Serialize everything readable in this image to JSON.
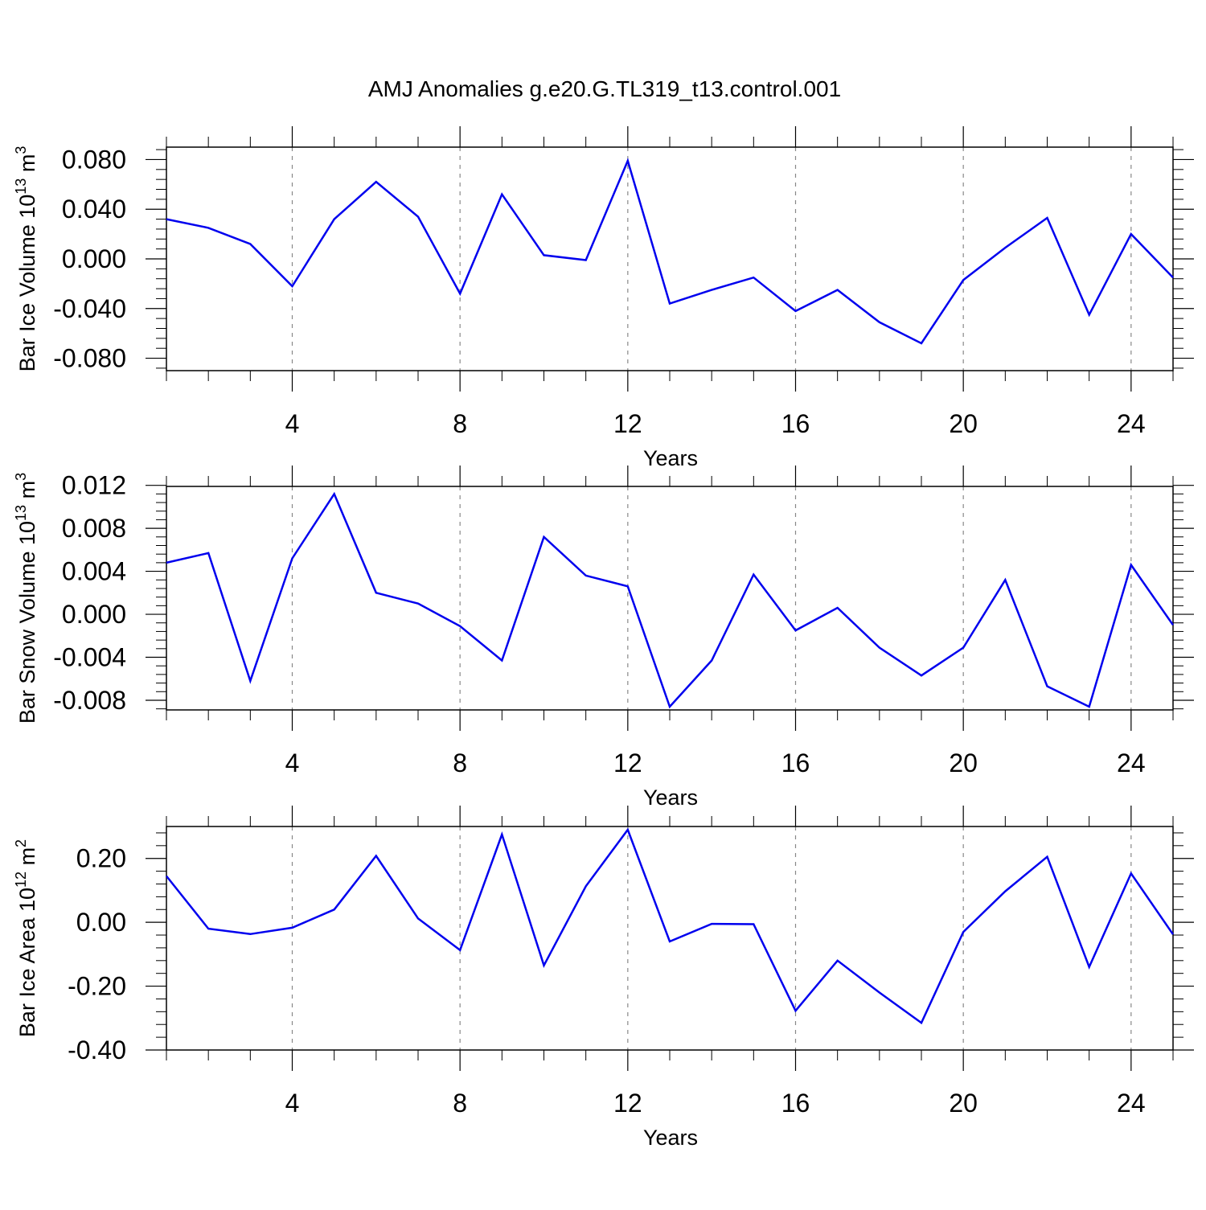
{
  "title": "AMJ Anomalies g.e20.G.TL319_t13.control.001",
  "colors": {
    "line": "#0000ee",
    "frame": "#000000",
    "grid": "#888888"
  },
  "chart_data": [
    {
      "type": "line",
      "ylabel": "Bar Ice Volume 10",
      "ylabel_exp": "13",
      "ylabel_unit": " m",
      "ylabel_unit_exp": "3",
      "xlabel": "Years",
      "xlim": [
        1,
        25
      ],
      "ylim": [
        -0.09,
        0.09
      ],
      "xticks": [
        4,
        8,
        12,
        16,
        20,
        24
      ],
      "xtick_labels": [
        "4",
        "8",
        "12",
        "16",
        "20",
        "24"
      ],
      "yticks": [
        -0.08,
        -0.04,
        0.0,
        0.04,
        0.08
      ],
      "ytick_labels": [
        "-0.080",
        "-0.040",
        "0.000",
        "0.040",
        "0.080"
      ],
      "x": [
        1,
        2,
        3,
        4,
        5,
        6,
        7,
        8,
        9,
        10,
        11,
        12,
        13,
        14,
        15,
        16,
        17,
        18,
        19,
        20,
        21,
        22,
        23,
        24,
        25
      ],
      "values": [
        0.032,
        0.025,
        0.012,
        -0.022,
        0.032,
        0.062,
        0.034,
        -0.028,
        0.052,
        0.003,
        -0.001,
        0.079,
        -0.036,
        -0.025,
        -0.015,
        -0.042,
        -0.025,
        -0.051,
        -0.068,
        -0.017,
        0.009,
        0.033,
        -0.045,
        0.02,
        -0.015
      ]
    },
    {
      "type": "line",
      "ylabel": "Bar Snow Volume 10",
      "ylabel_exp": "13",
      "ylabel_unit": " m",
      "ylabel_unit_exp": "3",
      "xlabel": "Years",
      "xlim": [
        1,
        25
      ],
      "ylim": [
        -0.0089,
        0.0119
      ],
      "xticks": [
        4,
        8,
        12,
        16,
        20,
        24
      ],
      "xtick_labels": [
        "4",
        "8",
        "12",
        "16",
        "20",
        "24"
      ],
      "yticks": [
        -0.008,
        -0.004,
        0.0,
        0.004,
        0.008,
        0.012
      ],
      "ytick_labels": [
        "-0.008",
        "-0.004",
        "0.000",
        "0.004",
        "0.008",
        "0.012"
      ],
      "x": [
        1,
        2,
        3,
        4,
        5,
        6,
        7,
        8,
        9,
        10,
        11,
        12,
        13,
        14,
        15,
        16,
        17,
        18,
        19,
        20,
        21,
        22,
        23,
        24,
        25
      ],
      "values": [
        0.0048,
        0.0057,
        -0.0062,
        0.0052,
        0.0112,
        0.002,
        0.001,
        -0.0011,
        -0.0043,
        0.0072,
        0.0036,
        0.0026,
        -0.0086,
        -0.0043,
        0.0037,
        -0.0015,
        0.0006,
        -0.0031,
        -0.0057,
        -0.0031,
        0.0032,
        -0.0067,
        -0.0086,
        0.0046,
        -0.001
      ]
    },
    {
      "type": "line",
      "ylabel": "Bar Ice Area 10",
      "ylabel_exp": "12",
      "ylabel_unit": " m",
      "ylabel_unit_exp": "2",
      "xlabel": "Years",
      "xlim": [
        1,
        25
      ],
      "ylim": [
        -0.4,
        0.3
      ],
      "xticks": [
        4,
        8,
        12,
        16,
        20,
        24
      ],
      "xtick_labels": [
        "4",
        "8",
        "12",
        "16",
        "20",
        "24"
      ],
      "yticks": [
        -0.4,
        -0.2,
        0.0,
        0.2
      ],
      "ytick_labels": [
        "-0.40",
        "-0.20",
        "0.00",
        "0.20"
      ],
      "x": [
        1,
        2,
        3,
        4,
        5,
        6,
        7,
        8,
        9,
        10,
        11,
        12,
        13,
        14,
        15,
        16,
        17,
        18,
        19,
        20,
        21,
        22,
        23,
        24,
        25
      ],
      "values": [
        0.145,
        -0.02,
        -0.037,
        -0.017,
        0.04,
        0.208,
        0.012,
        -0.087,
        0.275,
        -0.135,
        0.113,
        0.29,
        -0.06,
        -0.005,
        -0.006,
        -0.277,
        -0.12,
        -0.22,
        -0.315,
        -0.03,
        0.097,
        0.205,
        -0.14,
        0.153,
        -0.038
      ]
    }
  ]
}
